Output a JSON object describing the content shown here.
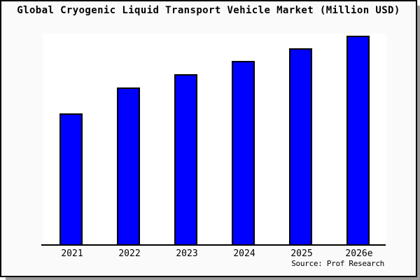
{
  "source": "Source: Prof Research",
  "colors": {
    "bar_fill": "#0000ff",
    "bar_border": "#000000",
    "page_background": "#fafafa",
    "plot_background": "#ffffff",
    "frame_border": "#000000",
    "shadow": "#9a9a9a",
    "text": "#000000"
  },
  "chart_data": {
    "type": "bar",
    "title": "Global Cryogenic Liquid Transport Vehicle Market (Million USD)",
    "categories": [
      "2021",
      "2022",
      "2023",
      "2024",
      "2025",
      "2026e"
    ],
    "values": [
      63,
      75.3,
      81.7,
      88,
      94,
      100
    ],
    "value_basis": "relative bar heights, max bar = 100; chart displays no y-axis scale or data labels",
    "xlabel": "",
    "ylabel": "",
    "ylim": [
      0,
      100
    ],
    "grid": false,
    "legend": "none",
    "source_note": "Source: Prof Research"
  }
}
